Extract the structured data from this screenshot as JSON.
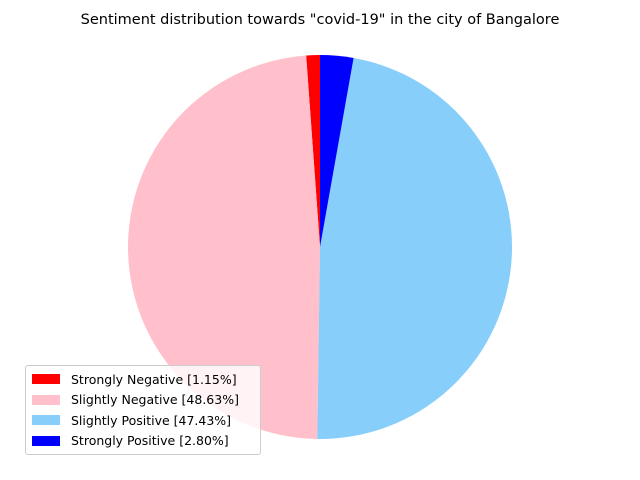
{
  "chart_data": {
    "type": "pie",
    "title": "Sentiment distribution towards \"covid-19\" in the city of Bangalore",
    "categories": [
      "Strongly Negative",
      "Slightly Negative",
      "Slightly Positive",
      "Strongly Positive"
    ],
    "values": [
      1.15,
      48.63,
      47.43,
      2.8
    ],
    "legend_labels": [
      "Strongly Negative [1.15%]",
      "Slightly Negative [48.63%]",
      "Slightly Positive [47.43%]",
      "Strongly Positive [2.80%]"
    ],
    "colors": [
      "#ff0000",
      "#ffc0cb",
      "#87cefa",
      "#0000ff"
    ],
    "legend_position": "lower-left"
  }
}
